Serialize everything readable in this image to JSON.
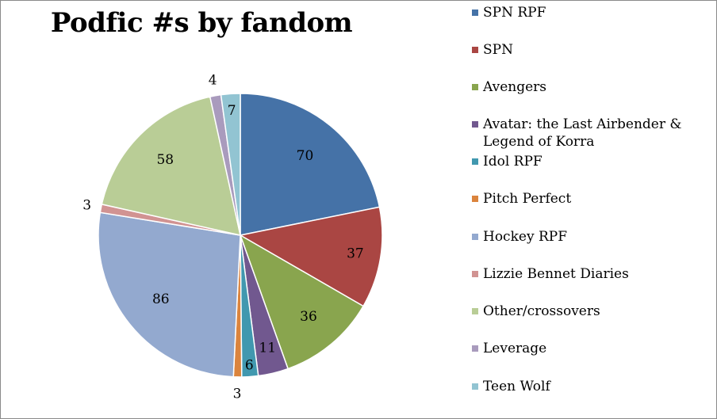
{
  "chart_data": {
    "type": "pie",
    "title": "Podfic #s by fandom",
    "legend_position": "right",
    "slices": [
      {
        "label": "SPN RPF",
        "value": 70,
        "color": "#4572A7"
      },
      {
        "label": "SPN",
        "value": 37,
        "color": "#AA4643"
      },
      {
        "label": "Avengers",
        "value": 36,
        "color": "#89A54E"
      },
      {
        "label": "Avatar: the Last Airbender & Legend of Korra",
        "value": 11,
        "color": "#71588F"
      },
      {
        "label": "Idol RPF",
        "value": 6,
        "color": "#4198AF"
      },
      {
        "label": "Pitch Perfect",
        "value": 3,
        "color": "#DB843D"
      },
      {
        "label": "Hockey RPF",
        "value": 86,
        "color": "#93A9CF"
      },
      {
        "label": "Lizzie Bennet Diaries",
        "value": 3,
        "color": "#D19392"
      },
      {
        "label": "Other/crossovers",
        "value": 58,
        "color": "#B9CD96"
      },
      {
        "label": "Leverage",
        "value": 4,
        "color": "#A99BBD"
      },
      {
        "label": "Teen Wolf",
        "value": 7,
        "color": "#92C4D2"
      }
    ]
  }
}
